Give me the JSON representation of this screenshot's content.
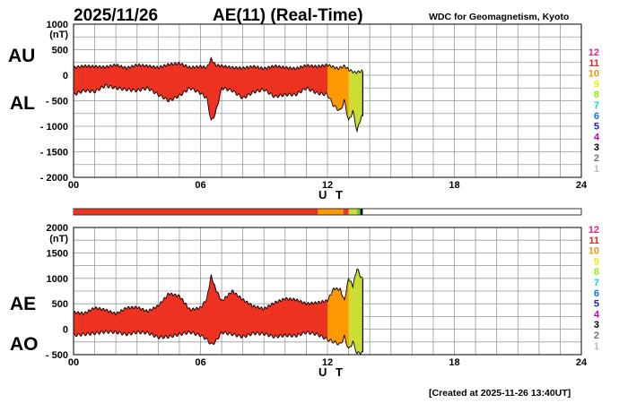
{
  "header": {
    "date": "2025/11/26",
    "title": "AE(11) (Real-Time)",
    "source": "WDC for Geomagnetism, Kyoto"
  },
  "footer": {
    "created": "[Created at 2025-11-26 13:40UT]"
  },
  "colors": {
    "hour_0_11": "#ee3322",
    "hour_12": "#ff9900",
    "hour_13": "#ccdd33"
  },
  "color_legend": [
    {
      "label": "12",
      "color": "#ee2288"
    },
    {
      "label": "11",
      "color": "#ee2222"
    },
    {
      "label": "10",
      "color": "#ee9900"
    },
    {
      "label": "9",
      "color": "#eeee00"
    },
    {
      "label": "8",
      "color": "#99ee00"
    },
    {
      "label": "7",
      "color": "#00dddd"
    },
    {
      "label": "6",
      "color": "#0077ff"
    },
    {
      "label": "5",
      "color": "#2222cc"
    },
    {
      "label": "4",
      "color": "#cc00cc"
    },
    {
      "label": "3",
      "color": "#000000"
    },
    {
      "label": "2",
      "color": "#777777"
    },
    {
      "label": "1",
      "color": "#bbbbbb"
    }
  ],
  "chart_data": [
    {
      "type": "area",
      "panel": "AU/AL",
      "series_labels": [
        "AU",
        "AL"
      ],
      "ylabel": "(nT)",
      "xlabel": "U T",
      "xlim": [
        0,
        24
      ],
      "ylim": [
        -2000,
        1000
      ],
      "yticks": [
        "1000",
        "500",
        "0",
        "- 500",
        "- 1000",
        "- 1500",
        "- 2000"
      ],
      "xticks": [
        "00",
        "06",
        "12",
        "18",
        "24"
      ],
      "grid": true,
      "data_end_hour": 13.67,
      "upper_series": {
        "name": "AU",
        "x": [
          0,
          0.5,
          1,
          1.5,
          2,
          2.5,
          3,
          3.5,
          4,
          4.5,
          5,
          5.5,
          6,
          6.3,
          6.5,
          6.7,
          7,
          7.5,
          8,
          8.5,
          9,
          9.5,
          10,
          10.5,
          11,
          11.5,
          12,
          12.5,
          12.8,
          13,
          13.3,
          13.6
        ],
        "values": [
          150,
          180,
          170,
          160,
          200,
          140,
          200,
          180,
          150,
          210,
          230,
          150,
          170,
          150,
          320,
          200,
          180,
          150,
          140,
          170,
          130,
          180,
          150,
          130,
          190,
          170,
          200,
          130,
          180,
          110,
          50,
          80
        ]
      },
      "lower_series": {
        "name": "AL",
        "x": [
          0,
          0.5,
          1,
          1.5,
          2,
          2.5,
          3,
          3.5,
          4,
          4.5,
          5,
          5.5,
          6,
          6.3,
          6.5,
          6.7,
          7,
          7.5,
          8,
          8.5,
          9,
          9.5,
          10,
          10.5,
          11,
          11.5,
          12,
          12.3,
          12.6,
          12.8,
          13,
          13.2,
          13.4,
          13.6
        ],
        "values": [
          -380,
          -300,
          -320,
          -200,
          -250,
          -280,
          -300,
          -250,
          -380,
          -500,
          -400,
          -250,
          -350,
          -450,
          -900,
          -750,
          -250,
          -300,
          -450,
          -330,
          -280,
          -420,
          -380,
          -380,
          -250,
          -350,
          -380,
          -600,
          -700,
          -500,
          -900,
          -700,
          -1100,
          -800
        ]
      }
    },
    {
      "type": "area",
      "panel": "AE/AO",
      "series_labels": [
        "AE",
        "AO"
      ],
      "ylabel": "(nT)",
      "xlabel": "U T",
      "xlim": [
        0,
        24
      ],
      "ylim": [
        -500,
        2000
      ],
      "yticks": [
        "2000",
        "1500",
        "1000",
        "500",
        "0",
        "- 500"
      ],
      "xticks": [
        "00",
        "06",
        "12",
        "18",
        "24"
      ],
      "grid": true,
      "data_end_hour": 13.67,
      "upper_series": {
        "name": "AE",
        "x": [
          0,
          0.5,
          1,
          1.5,
          2,
          2.5,
          3,
          3.5,
          4,
          4.5,
          5,
          5.5,
          6,
          6.3,
          6.5,
          6.7,
          7,
          7.5,
          8,
          8.5,
          9,
          9.5,
          10,
          10.5,
          11,
          11.5,
          12,
          12.3,
          12.6,
          12.8,
          13,
          13.2,
          13.4,
          13.6
        ],
        "values": [
          330,
          310,
          420,
          380,
          300,
          420,
          430,
          350,
          460,
          700,
          650,
          380,
          420,
          600,
          1050,
          800,
          550,
          750,
          580,
          450,
          400,
          520,
          600,
          580,
          500,
          520,
          560,
          800,
          780,
          560,
          1000,
          850,
          1200,
          1000
        ]
      },
      "lower_series": {
        "name": "AO",
        "x": [
          0,
          0.5,
          1,
          1.5,
          2,
          2.5,
          3,
          3.5,
          4,
          4.5,
          5,
          5.5,
          6,
          6.3,
          6.5,
          6.7,
          7,
          7.5,
          8,
          8.5,
          9,
          9.5,
          10,
          10.5,
          11,
          11.5,
          12,
          12.3,
          12.6,
          12.8,
          13,
          13.2,
          13.4,
          13.6
        ],
        "values": [
          -120,
          -100,
          -80,
          -50,
          -60,
          -100,
          -60,
          -70,
          -160,
          -150,
          -100,
          -60,
          -120,
          -200,
          -300,
          -250,
          -60,
          -100,
          -150,
          -80,
          -90,
          -150,
          -120,
          -130,
          -60,
          -100,
          -200,
          -250,
          -300,
          -150,
          -400,
          -250,
          -480,
          -450
        ]
      }
    }
  ]
}
